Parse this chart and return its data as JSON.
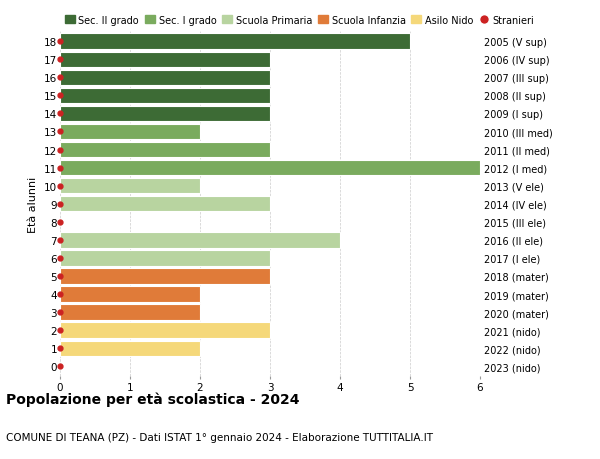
{
  "ages": [
    18,
    17,
    16,
    15,
    14,
    13,
    12,
    11,
    10,
    9,
    8,
    7,
    6,
    5,
    4,
    3,
    2,
    1,
    0
  ],
  "right_labels": [
    "2005 (V sup)",
    "2006 (IV sup)",
    "2007 (III sup)",
    "2008 (II sup)",
    "2009 (I sup)",
    "2010 (III med)",
    "2011 (II med)",
    "2012 (I med)",
    "2013 (V ele)",
    "2014 (IV ele)",
    "2015 (III ele)",
    "2016 (II ele)",
    "2017 (I ele)",
    "2018 (mater)",
    "2019 (mater)",
    "2020 (mater)",
    "2021 (nido)",
    "2022 (nido)",
    "2023 (nido)"
  ],
  "bar_values": [
    5,
    3,
    3,
    3,
    3,
    2,
    3,
    6,
    2,
    3,
    0,
    4,
    3,
    3,
    2,
    2,
    3,
    2,
    0
  ],
  "bar_colors": [
    "#3d6b35",
    "#3d6b35",
    "#3d6b35",
    "#3d6b35",
    "#3d6b35",
    "#7aab5e",
    "#7aab5e",
    "#7aab5e",
    "#b8d4a0",
    "#b8d4a0",
    "#b8d4a0",
    "#b8d4a0",
    "#b8d4a0",
    "#e07b39",
    "#e07b39",
    "#e07b39",
    "#f5d87a",
    "#f5d87a",
    "#f5d87a"
  ],
  "dot_color": "#cc2222",
  "legend_labels": [
    "Sec. II grado",
    "Sec. I grado",
    "Scuola Primaria",
    "Scuola Infanzia",
    "Asilo Nido",
    "Stranieri"
  ],
  "legend_colors": [
    "#3d6b35",
    "#7aab5e",
    "#b8d4a0",
    "#e07b39",
    "#f5d87a",
    "#cc2222"
  ],
  "legend_markers": [
    "s",
    "s",
    "s",
    "s",
    "s",
    "o"
  ],
  "xlabel_left": "Età alunni",
  "title": "Popolazione per età scolastica - 2024",
  "subtitle": "COMUNE DI TEANA (PZ) - Dati ISTAT 1° gennaio 2024 - Elaborazione TUTTITALIA.IT",
  "xlim": [
    0,
    6
  ],
  "bar_height": 0.85,
  "background_color": "#ffffff"
}
